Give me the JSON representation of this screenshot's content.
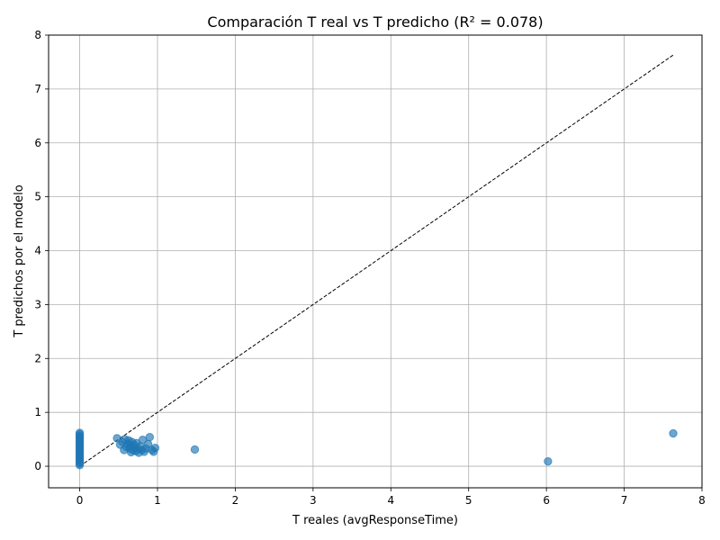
{
  "chart_data": {
    "type": "scatter",
    "title": "Comparación T real vs T predicho (R² = 0.078)",
    "xlabel": "T reales (avgResponseTime)",
    "ylabel": "T predichos por el modelo",
    "xlim": [
      -0.4,
      8.0
    ],
    "ylim": [
      -0.4,
      8.0
    ],
    "x_ticks": [
      "0",
      "1",
      "2",
      "3",
      "4",
      "5",
      "6",
      "7",
      "8"
    ],
    "y_ticks": [
      "0",
      "1",
      "2",
      "3",
      "4",
      "5",
      "6",
      "7",
      "8"
    ],
    "grid": true,
    "point_color": "#1f77b4",
    "point_alpha": 0.65,
    "reference_line": {
      "style": "dashed",
      "color": "#000000",
      "from": [
        0,
        0
      ],
      "to": [
        7.63,
        7.63
      ]
    },
    "points": [
      {
        "x": 0,
        "y": 0.62
      },
      {
        "x": 0,
        "y": 0.59
      },
      {
        "x": 0,
        "y": 0.56
      },
      {
        "x": 0,
        "y": 0.53
      },
      {
        "x": 0,
        "y": 0.5
      },
      {
        "x": 0,
        "y": 0.47
      },
      {
        "x": 0,
        "y": 0.44
      },
      {
        "x": 0,
        "y": 0.41
      },
      {
        "x": 0,
        "y": 0.38
      },
      {
        "x": 0,
        "y": 0.35
      },
      {
        "x": 0,
        "y": 0.32
      },
      {
        "x": 0,
        "y": 0.29
      },
      {
        "x": 0,
        "y": 0.26
      },
      {
        "x": 0,
        "y": 0.23
      },
      {
        "x": 0,
        "y": 0.2
      },
      {
        "x": 0,
        "y": 0.17
      },
      {
        "x": 0,
        "y": 0.14
      },
      {
        "x": 0,
        "y": 0.11
      },
      {
        "x": 0,
        "y": 0.08
      },
      {
        "x": 0,
        "y": 0.05
      },
      {
        "x": 0,
        "y": 0.02
      },
      {
        "x": 0.48,
        "y": 0.52
      },
      {
        "x": 0.52,
        "y": 0.4
      },
      {
        "x": 0.55,
        "y": 0.45
      },
      {
        "x": 0.57,
        "y": 0.3
      },
      {
        "x": 0.58,
        "y": 0.5
      },
      {
        "x": 0.6,
        "y": 0.36
      },
      {
        "x": 0.62,
        "y": 0.42
      },
      {
        "x": 0.63,
        "y": 0.48
      },
      {
        "x": 0.64,
        "y": 0.33
      },
      {
        "x": 0.65,
        "y": 0.38
      },
      {
        "x": 0.66,
        "y": 0.26
      },
      {
        "x": 0.67,
        "y": 0.45
      },
      {
        "x": 0.68,
        "y": 0.3
      },
      {
        "x": 0.7,
        "y": 0.4
      },
      {
        "x": 0.71,
        "y": 0.35
      },
      {
        "x": 0.72,
        "y": 0.28
      },
      {
        "x": 0.73,
        "y": 0.43
      },
      {
        "x": 0.75,
        "y": 0.32
      },
      {
        "x": 0.76,
        "y": 0.25
      },
      {
        "x": 0.78,
        "y": 0.37
      },
      {
        "x": 0.8,
        "y": 0.3
      },
      {
        "x": 0.81,
        "y": 0.49
      },
      {
        "x": 0.83,
        "y": 0.27
      },
      {
        "x": 0.85,
        "y": 0.33
      },
      {
        "x": 0.88,
        "y": 0.41
      },
      {
        "x": 0.9,
        "y": 0.54
      },
      {
        "x": 0.93,
        "y": 0.3
      },
      {
        "x": 0.95,
        "y": 0.27
      },
      {
        "x": 0.97,
        "y": 0.34
      },
      {
        "x": 1.48,
        "y": 0.31
      },
      {
        "x": 6.02,
        "y": 0.09
      },
      {
        "x": 7.63,
        "y": 0.61
      }
    ]
  }
}
